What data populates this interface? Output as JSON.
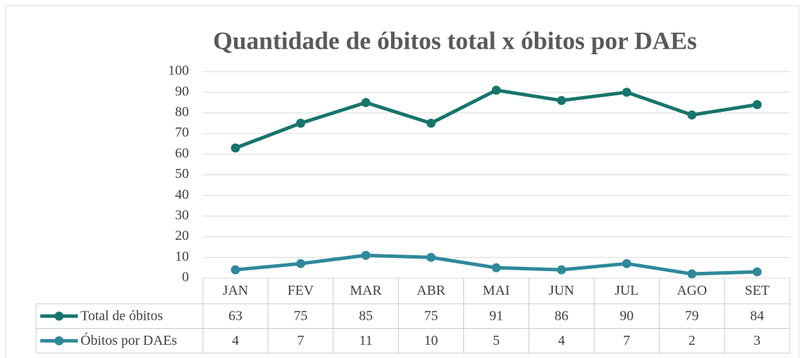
{
  "chart_data": {
    "type": "line",
    "title": "Quantidade de óbitos total x óbitos por DAEs",
    "categories": [
      "JAN",
      "FEV",
      "MAR",
      "ABR",
      "MAI",
      "JUN",
      "JUL",
      "AGO",
      "SET"
    ],
    "series": [
      {
        "name": "Total de óbitos",
        "color": "#17756b",
        "values": [
          63,
          75,
          85,
          75,
          91,
          86,
          90,
          79,
          84
        ]
      },
      {
        "name": "Óbitos por DAEs",
        "color": "#2f889c",
        "values": [
          4,
          7,
          11,
          10,
          5,
          4,
          7,
          2,
          3
        ]
      }
    ],
    "ylim": [
      0,
      100
    ],
    "yticks": [
      0,
      10,
      20,
      30,
      40,
      50,
      60,
      70,
      80,
      90,
      100
    ],
    "grid": true
  }
}
